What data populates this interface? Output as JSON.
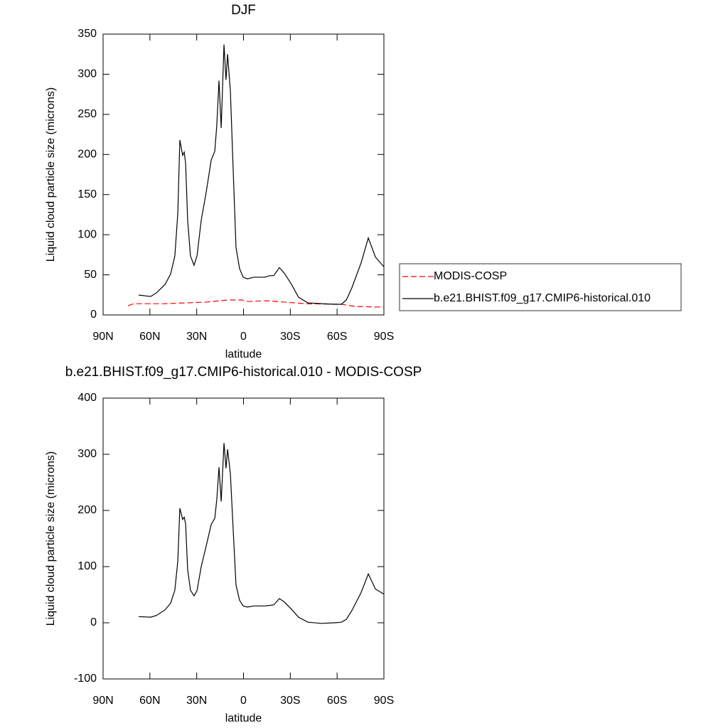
{
  "chart_data": [
    {
      "type": "line",
      "title": "DJF",
      "xlabel": "latitude",
      "ylabel": "Liquid cloud particle size (microns)",
      "xlim": [
        90,
        -90
      ],
      "xticks": [
        {
          "value": 90,
          "label": "90N"
        },
        {
          "value": 60,
          "label": "60N"
        },
        {
          "value": 30,
          "label": "30N"
        },
        0,
        {
          "value": -30,
          "label": "30S"
        },
        {
          "value": -60,
          "label": "60S"
        },
        {
          "value": -90,
          "label": "90S"
        }
      ],
      "ylim": [
        0,
        350
      ],
      "yticks": [
        0,
        50,
        100,
        150,
        200,
        250,
        300,
        350
      ],
      "legend": "right",
      "series": [
        {
          "name": "MODIS-COSP",
          "color": "#ff0000",
          "dashed": true,
          "x": [
            74,
            70.4,
            51,
            24,
            10,
            1.1,
            -3.4,
            -14.8,
            -26.2,
            -39.9,
            -62.7,
            -71.8,
            -90
          ],
          "values": [
            11.5,
            14,
            14,
            16,
            18.6,
            18.6,
            16.8,
            17.7,
            16,
            14,
            13.3,
            10.6,
            9.7
          ]
        },
        {
          "name": "b.e21.BHIST.f09_g17.CMIP6-historical.010",
          "color": "#000000",
          "dashed": false,
          "x": [
            67.2,
            59.5,
            55.8,
            50.3,
            46.7,
            44,
            42.1,
            40.8,
            39,
            38,
            37.1,
            35.8,
            34,
            31.7,
            29.8,
            27.1,
            23.9,
            20.7,
            18.4,
            17.1,
            15.7,
            14.3,
            12.5,
            11.2,
            10.2,
            8.4,
            6.6,
            4.8,
            2.5,
            0.2,
            -2.5,
            -6.6,
            -13.5,
            -17.1,
            -19.4,
            -23,
            -26.2,
            -30.8,
            -35.3,
            -41.3,
            -58.1,
            -62.7,
            -65.9,
            -69.5,
            -75.4,
            -80,
            -84.6,
            -90
          ],
          "values": [
            24.8,
            23,
            27.5,
            38,
            51,
            73.5,
            127,
            218,
            199,
            203,
            189,
            118,
            73.5,
            62,
            73.5,
            118,
            153,
            193,
            204,
            237,
            292,
            233,
            337,
            293,
            325,
            279,
            180,
            84,
            57.6,
            47,
            45,
            47,
            47,
            49,
            49,
            59,
            52,
            38,
            22,
            15,
            13.3,
            13.3,
            18.6,
            34,
            65,
            96,
            72,
            60
          ]
        }
      ]
    },
    {
      "type": "line",
      "title": "b.e21.BHIST.f09_g17.CMIP6-historical.010 - MODIS-COSP",
      "xlabel": "latitude",
      "ylabel": "Liquid cloud particle size (microns)",
      "xlim": [
        90,
        -90
      ],
      "xticks": [
        {
          "value": 90,
          "label": "90N"
        },
        {
          "value": 60,
          "label": "60N"
        },
        {
          "value": 30,
          "label": "30N"
        },
        0,
        {
          "value": -30,
          "label": "30S"
        },
        {
          "value": -60,
          "label": "60S"
        },
        {
          "value": -90,
          "label": "90S"
        }
      ],
      "ylim": [
        -100,
        400
      ],
      "yticks": [
        -100,
        0,
        100,
        200,
        300,
        400
      ],
      "series": [
        {
          "color": "#000000",
          "dashed": false,
          "x": [
            67.2,
            59.5,
            55.8,
            50.3,
            46.7,
            44,
            42.1,
            40.8,
            39,
            38,
            37.1,
            35.8,
            34,
            31.7,
            29.8,
            27.1,
            23.9,
            20.7,
            18.4,
            17.1,
            15.7,
            14.3,
            12.5,
            11.2,
            10.2,
            8.4,
            6.6,
            4.8,
            2.5,
            0.2,
            -2.5,
            -6.6,
            -13.5,
            -17.1,
            -19.4,
            -23,
            -26.2,
            -30.8,
            -35.3,
            -41.3,
            -50,
            -58.1,
            -62.7,
            -65.9,
            -69.5,
            -75.4,
            -80,
            -84.6,
            -90
          ],
          "values": [
            11,
            10,
            13,
            23,
            35,
            58,
            110,
            204,
            184,
            188,
            176,
            95,
            58,
            48,
            57,
            100,
            137,
            175,
            186,
            220,
            277,
            216,
            320,
            275,
            309,
            265,
            165,
            67,
            40,
            30,
            28,
            30,
            30,
            31,
            32,
            43,
            37,
            24,
            10,
            1,
            -1,
            0,
            1,
            6,
            22,
            54,
            87,
            60,
            51
          ]
        }
      ]
    }
  ]
}
